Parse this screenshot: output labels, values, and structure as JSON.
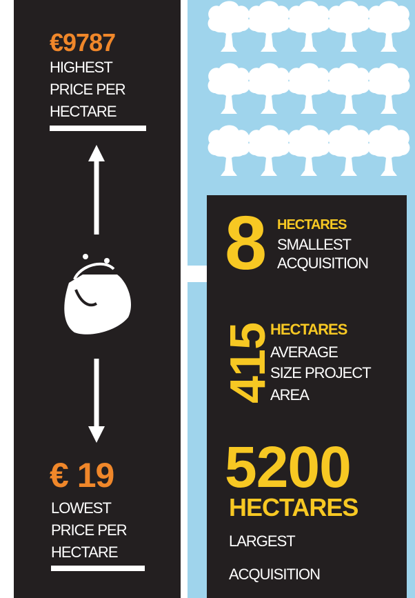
{
  "price": {
    "highest": {
      "amount": "€9787",
      "label": [
        "HIGHEST",
        "PRICE PER",
        "HECTARE"
      ]
    },
    "lowest": {
      "amount": "€ 19",
      "label": [
        "LOWEST",
        "PRICE PER",
        "HECTARE"
      ]
    }
  },
  "stats": [
    {
      "value": "8",
      "unit": "HECTARES",
      "label": [
        "SMALLEST",
        "ACQUISITION"
      ]
    },
    {
      "value": "415",
      "unit": "HECTARES",
      "label": [
        "AVERAGE",
        "SIZE PROJECT",
        "AREA"
      ]
    },
    {
      "value": "5200",
      "unit": "HECTARES",
      "label": [
        "LARGEST",
        "ACQUISITION"
      ]
    }
  ]
}
